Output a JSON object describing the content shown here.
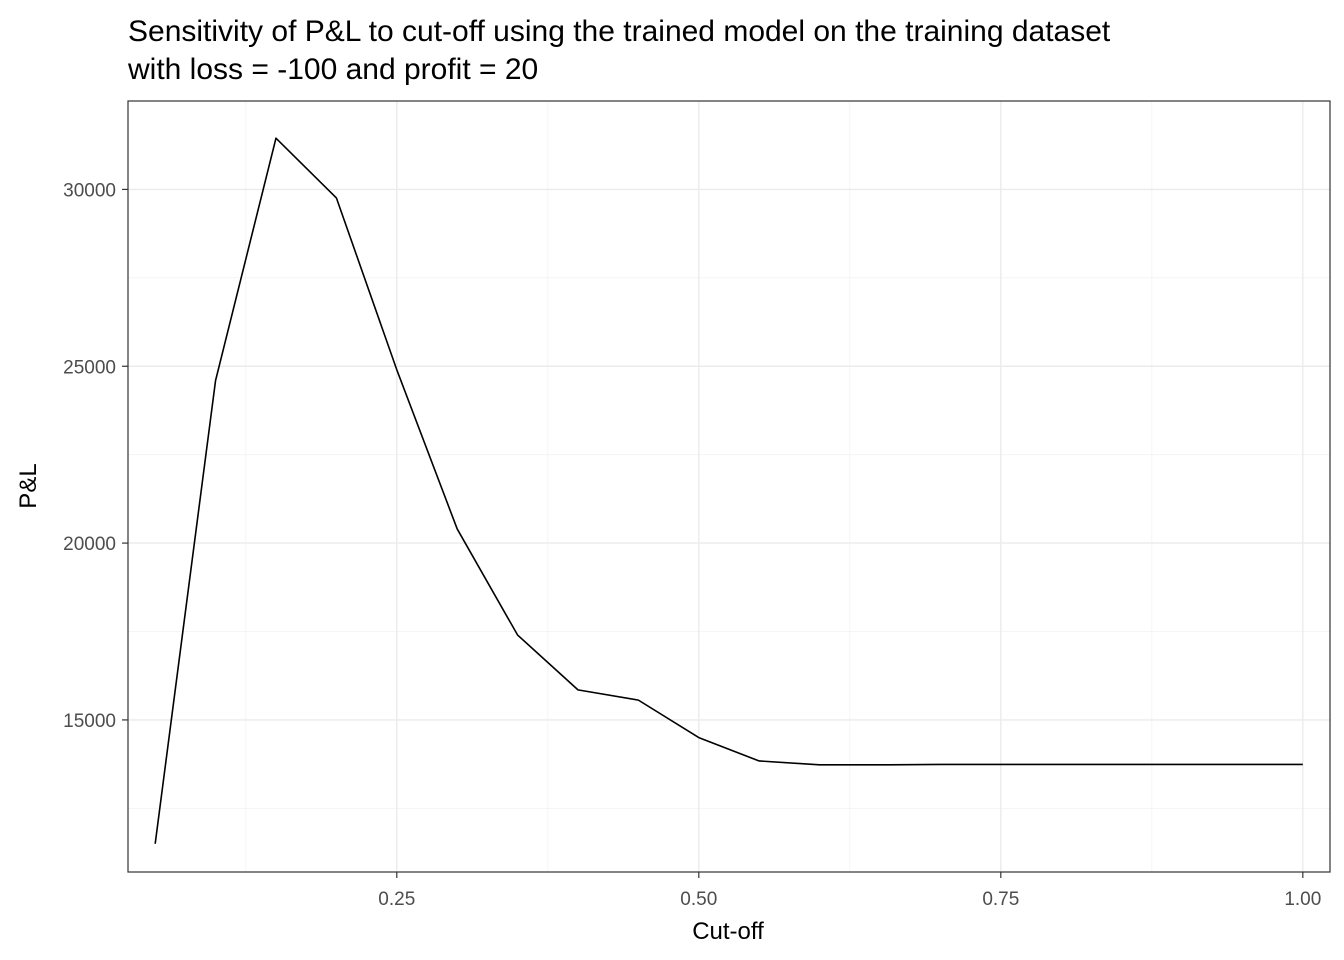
{
  "chart_data": {
    "type": "line",
    "title_lines": [
      "Sensitivity of P&L to cut-off using the trained model on the training dataset",
      "with loss = -100 and profit = 20"
    ],
    "xlabel": "Cut-off",
    "ylabel": "P&L",
    "xlim": [
      0.0275,
      1.0225
    ],
    "ylim": [
      10700,
      32500
    ],
    "x_ticks": [
      0.25,
      0.5,
      0.75,
      1.0
    ],
    "x_tick_labels": [
      "0.25",
      "0.50",
      "0.75",
      "1.00"
    ],
    "y_ticks": [
      15000,
      20000,
      25000,
      30000
    ],
    "y_tick_labels": [
      "15000",
      "20000",
      "25000",
      "30000"
    ],
    "x_minor_ticks": [
      0.125,
      0.375,
      0.625,
      0.875
    ],
    "y_minor_ticks": [
      12500,
      17500,
      22500,
      27500
    ],
    "grid": true,
    "legend": "none",
    "line_color": "#000000",
    "series": [
      {
        "x": [
          0.05,
          0.1,
          0.15,
          0.2,
          0.25,
          0.3,
          0.35,
          0.4,
          0.45,
          0.5,
          0.55,
          0.6,
          0.65,
          0.7,
          0.75,
          0.8,
          0.85,
          0.9,
          0.95,
          1.0
        ],
        "values": [
          11500,
          24600,
          31450,
          29760,
          24900,
          20400,
          17400,
          15850,
          15560,
          14500,
          13840,
          13730,
          13730,
          13740,
          13740,
          13740,
          13740,
          13740,
          13740,
          13740
        ]
      }
    ]
  }
}
